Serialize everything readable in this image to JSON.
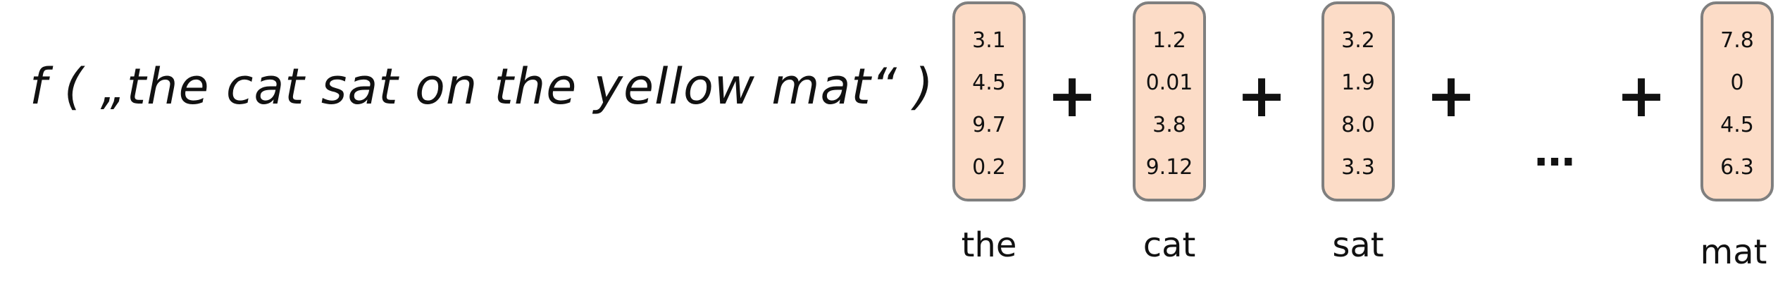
{
  "formula": {
    "text": "f ( „the cat sat on the yellow mat“ ) ="
  },
  "vectors": [
    {
      "label": "the",
      "values": [
        "3.1",
        "4.5",
        "9.7",
        "0.2"
      ]
    },
    {
      "label": "cat",
      "values": [
        "1.2",
        "0.01",
        "3.8",
        "9.12"
      ]
    },
    {
      "label": "sat",
      "values": [
        "3.2",
        "1.9",
        "8.0",
        "3.3"
      ]
    },
    {
      "label": "mat",
      "values": [
        "7.8",
        "0",
        "4.5",
        "6.3"
      ]
    }
  ],
  "operators": {
    "plus": "+",
    "ellipsis": "…"
  },
  "colors": {
    "vector_fill": "#fcdcc7",
    "vector_border": "#7f7f7f",
    "text": "#111111"
  }
}
